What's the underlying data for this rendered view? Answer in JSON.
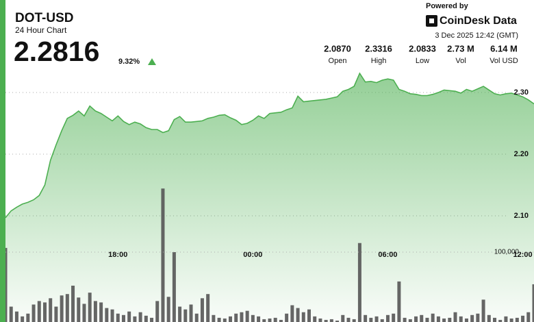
{
  "header": {
    "symbol": "DOT-USD",
    "subtitle": "24 Hour Chart",
    "price": "2.2816",
    "change": "9.32%",
    "powered": "Powered by",
    "brand": "CoinDesk Data",
    "timestamp": "3 Dec 2025 12:42 (GMT)"
  },
  "stats": [
    {
      "value": "2.0870",
      "label": "Open"
    },
    {
      "value": "2.3316",
      "label": "High"
    },
    {
      "value": "2.0833",
      "label": "Low"
    },
    {
      "value": "2.73 M",
      "label": "Vol"
    },
    {
      "value": "6.14 M",
      "label": "Vol USD"
    }
  ],
  "chart_data": {
    "type": "line",
    "categories": [
      null,
      null,
      null,
      null,
      null,
      null,
      null,
      null,
      null,
      null,
      null,
      null,
      null,
      null,
      null,
      null,
      null,
      null,
      null,
      null,
      "18:00",
      null,
      null,
      null,
      null,
      null,
      null,
      null,
      null,
      null,
      null,
      null,
      null,
      null,
      null,
      null,
      null,
      null,
      null,
      null,
      null,
      null,
      null,
      null,
      "00:00",
      null,
      null,
      null,
      null,
      null,
      null,
      null,
      null,
      null,
      null,
      null,
      null,
      null,
      null,
      null,
      null,
      null,
      null,
      null,
      null,
      null,
      null,
      null,
      "06:00",
      null,
      null,
      null,
      null,
      null,
      null,
      null,
      null,
      null,
      null,
      null,
      null,
      null,
      null,
      null,
      null,
      null,
      null,
      null,
      null,
      null,
      null,
      null,
      "12:00",
      null,
      null
    ],
    "series": [
      {
        "color": "#4caf50",
        "values": [
          2.097,
          2.108,
          2.114,
          2.119,
          2.122,
          2.126,
          2.133,
          2.15,
          2.19,
          2.215,
          2.238,
          2.258,
          2.263,
          2.27,
          2.262,
          2.278,
          2.27,
          2.266,
          2.26,
          2.254,
          2.262,
          2.253,
          2.248,
          2.252,
          2.249,
          2.243,
          2.24,
          2.24,
          2.235,
          2.238,
          2.256,
          2.261,
          2.252,
          2.252,
          2.253,
          2.254,
          2.258,
          2.26,
          2.263,
          2.264,
          2.259,
          2.255,
          2.248,
          2.25,
          2.255,
          2.262,
          2.258,
          2.266,
          2.267,
          2.268,
          2.272,
          2.275,
          2.294,
          2.285,
          2.286,
          2.287,
          2.288,
          2.289,
          2.291,
          2.293,
          2.302,
          2.305,
          2.31,
          2.331,
          2.317,
          2.318,
          2.316,
          2.32,
          2.322,
          2.32,
          2.305,
          2.302,
          2.298,
          2.297,
          2.295,
          2.295,
          2.297,
          2.3,
          2.304,
          2.303,
          2.302,
          2.299,
          2.305,
          2.302,
          2.306,
          2.31,
          2.304,
          2.298,
          2.296,
          2.298,
          2.299,
          2.296,
          2.293,
          2.288,
          2.2816
        ]
      },
      {
        "type": "bar",
        "axis": "y2",
        "color": "#555555",
        "values": [
          106000,
          22000,
          15000,
          8000,
          12000,
          25000,
          30000,
          28000,
          34000,
          22000,
          38000,
          40000,
          52000,
          35000,
          26000,
          42000,
          30000,
          28000,
          20000,
          18000,
          12000,
          10000,
          15000,
          8000,
          14000,
          9000,
          6000,
          30000,
          191000,
          36000,
          100000,
          22000,
          18000,
          25000,
          12000,
          34000,
          40000,
          10000,
          6000,
          5000,
          8000,
          12000,
          14000,
          16000,
          10000,
          8000,
          4000,
          5000,
          6000,
          3000,
          12000,
          24000,
          20000,
          14000,
          18000,
          8000,
          5000,
          3000,
          4000,
          2000,
          10000,
          6000,
          4000,
          113000,
          10000,
          6000,
          8000,
          4000,
          10000,
          12000,
          58000,
          6000,
          4000,
          8000,
          10000,
          6000,
          12000,
          8000,
          5000,
          6000,
          14000,
          8000,
          5000,
          10000,
          12000,
          32000,
          10000,
          6000,
          3000,
          8000,
          5000,
          6000,
          9000,
          14000,
          54000
        ]
      }
    ],
    "ylim": [
      1.93,
      2.34
    ],
    "yticks": [
      {
        "value": 2.1,
        "label": "2.10"
      },
      {
        "value": 2.2,
        "label": "2.20"
      },
      {
        "value": 2.3,
        "label": "2.30"
      }
    ],
    "y2lim": [
      0,
      300000
    ],
    "y2ticks": [
      {
        "value": 100000,
        "label": "100,000"
      }
    ],
    "grid": true
  }
}
